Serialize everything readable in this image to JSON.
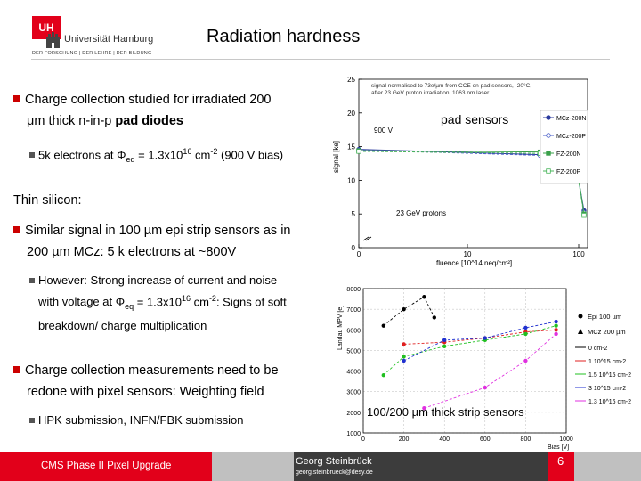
{
  "header": {
    "logo_box": "UH",
    "logo_name": "Universität Hamburg",
    "logo_sub": "DER FORSCHUNG | DER LEHRE | DER BILDUNG",
    "title": "Radiation hardness"
  },
  "body": {
    "b1_line1": "Charge collection studied for irradiated 200",
    "b1_line2_pre": "μm thick n-in-p ",
    "b1_line2_bold": "pad diodes",
    "b1_sub_pre": "5k electrons at Φ",
    "b1_sub_eq": "eq",
    "b1_sub_mid": " = 1.3x10",
    "b1_sub_exp": "16",
    "b1_sub_mid2": " cm",
    "b1_sub_exp2": "-2",
    "b1_sub_post": " (900 V bias)",
    "section": "Thin silicon:",
    "b2_line1": "Similar signal in 100 µm epi strip sensors as in",
    "b2_line2": "200 µm MCz: 5 k electrons at ~800V",
    "b2_sub1": "However: Strong increase of current and noise",
    "b2_sub2_pre": "with voltage at Φ",
    "b2_sub2_eq": "eq",
    "b2_sub2_mid": " = 1.3x10",
    "b2_sub2_exp": "16",
    "b2_sub2_mid2": " cm",
    "b2_sub2_exp2": "-2",
    "b2_sub2_post": ": Signs of soft",
    "b2_sub3": "breakdown/ charge multiplication",
    "b3_line1": "Charge collection measurements need to be",
    "b3_line2": "redone with pixel sensors: Weighting field",
    "b3_sub": "HPK submission, INFN/FBK submission"
  },
  "footer": {
    "left": "CMS Phase II Pixel Upgrade",
    "author": "Georg Steinbrück",
    "email": "georg.steinbrueck@desy.de",
    "page": "6"
  },
  "chart_data": [
    {
      "type": "line",
      "title": "pad sensors",
      "annotation": "signal normalised to 73e/µm from CCE on pad sensors, -20°C, after 23 GeV proton irradiation, 1063 nm laser",
      "annotation_lines": [
        "signal normalised to 73e/µm from CCE on pad sensors, -20°C,",
        "after 23 GeV proton irradiation, 1063 nm laser"
      ],
      "bias_label": "900 V",
      "particle_label": "23 GeV protons",
      "xlabel": "fluence [10^14 neq/cm²]",
      "ylabel": "signal [ke]",
      "xlim": [
        0,
        110
      ],
      "ylim": [
        0,
        25
      ],
      "x_ticks": [
        0,
        10,
        100
      ],
      "y_ticks": [
        0,
        5,
        10,
        15,
        20,
        25
      ],
      "x_tick_labels": [
        "0",
        "10",
        "100"
      ],
      "y_tick_labels": [
        "0",
        "5",
        "10",
        "15",
        "20",
        "25"
      ],
      "series": [
        {
          "name": "MCz-200N",
          "color": "#2b3a9e",
          "marker": "filled-circle",
          "x": [
            0,
            45,
            65,
            85,
            100,
            140
          ],
          "y": [
            14.6,
            13.8,
            13.0,
            12.3,
            10.0,
            5.5
          ]
        },
        {
          "name": "MCz-200P",
          "color": "#4a5fc8",
          "marker": "open-circle",
          "x": [
            0,
            45,
            65,
            85,
            100,
            140
          ],
          "y": [
            14.5,
            13.7,
            12.9,
            12.2,
            10.1,
            5.2
          ]
        },
        {
          "name": "FZ-200N",
          "color": "#3aa04a",
          "marker": "filled-square",
          "x": [
            0,
            45,
            65,
            85,
            100,
            140
          ],
          "y": [
            14.4,
            14.2,
            13.4,
            12.9,
            10.2,
            5.0
          ]
        },
        {
          "name": "FZ-200P",
          "color": "#49b55b",
          "marker": "open-square",
          "x": [
            0,
            45,
            65,
            85,
            100,
            140
          ],
          "y": [
            14.3,
            14.0,
            13.3,
            12.7,
            9.9,
            4.8
          ]
        }
      ]
    },
    {
      "type": "line",
      "title": "100/200 µm thick strip sensors",
      "xlabel": "Bias [V]",
      "ylabel": "Landau MPV [e]",
      "xlim": [
        0,
        1000
      ],
      "ylim": [
        1000,
        8000
      ],
      "x_ticks": [
        0,
        200,
        400,
        600,
        800,
        1000
      ],
      "y_ticks": [
        1000,
        2000,
        3000,
        4000,
        5000,
        6000,
        7000,
        8000
      ],
      "x_tick_labels": [
        "0",
        "200",
        "400",
        "600",
        "800",
        "1000"
      ],
      "y_tick_labels": [
        "1000",
        "2000",
        "3000",
        "4000",
        "5000",
        "6000",
        "7000",
        "8000"
      ],
      "legend_groups": [
        "Epi 100 µm",
        "MCz 200 µm"
      ],
      "series": [
        {
          "name": "0 cm-2",
          "color": "#000000",
          "x": [
            100,
            200,
            300,
            350
          ],
          "y": [
            6200,
            7000,
            7600,
            6600
          ]
        },
        {
          "name": "1 10^15 cm-2",
          "color": "#e02020",
          "x": [
            200,
            400,
            600,
            800,
            950
          ],
          "y": [
            5300,
            5400,
            5600,
            5900,
            6000
          ]
        },
        {
          "name": "1.5 10^15 cm-2",
          "color": "#20c020",
          "x": [
            100,
            200,
            400,
            600,
            800,
            950
          ],
          "y": [
            3800,
            4700,
            5200,
            5500,
            5800,
            6200
          ]
        },
        {
          "name": "3 10^15 cm-2",
          "color": "#2030d0",
          "x": [
            200,
            400,
            600,
            800,
            950
          ],
          "y": [
            4500,
            5500,
            5600,
            6100,
            6400
          ]
        },
        {
          "name": "1.3 10^16 cm-2",
          "color": "#e030e0",
          "x": [
            300,
            600,
            800,
            950
          ],
          "y": [
            2200,
            3200,
            4500,
            5800
          ]
        }
      ]
    }
  ]
}
